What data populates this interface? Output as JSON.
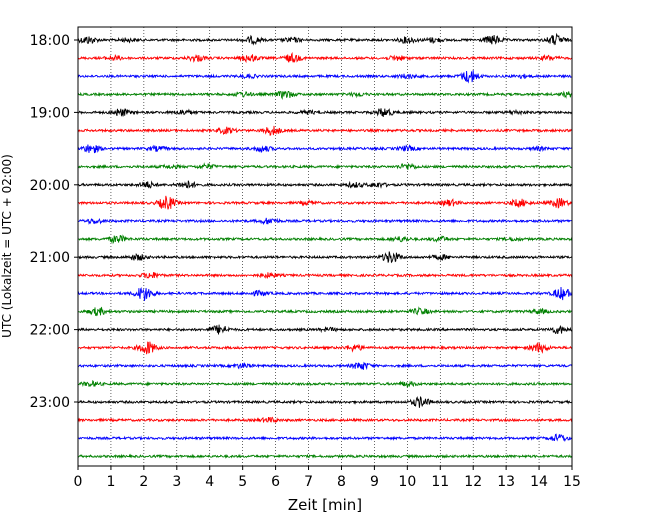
{
  "chart_data": {
    "type": "line",
    "title": "",
    "xlabel": "Zeit  [min]",
    "ylabel": "UTC (Lokalzeit = UTC + 02:00)",
    "xlim": [
      0,
      15
    ],
    "x_ticks": [
      "0",
      "1",
      "2",
      "3",
      "4",
      "5",
      "6",
      "7",
      "8",
      "9",
      "10",
      "11",
      "12",
      "13",
      "14",
      "15"
    ],
    "y_tick_labels": [
      "18:00",
      "19:00",
      "20:00",
      "21:00",
      "22:00",
      "23:00"
    ],
    "grid": "vertical dotted at each minute",
    "trace_colors": [
      "#000000",
      "#ff0000",
      "#0000ff",
      "#008000"
    ],
    "traces": [
      {
        "start": "18:00",
        "color": "#000000",
        "events": [
          [
            0.3,
            0.5
          ],
          [
            1.5,
            0.2
          ],
          [
            5.3,
            0.45
          ],
          [
            6.5,
            0.3
          ],
          [
            10.0,
            0.4
          ],
          [
            10.8,
            0.3
          ],
          [
            12.6,
            0.6
          ],
          [
            14.5,
            0.7
          ]
        ]
      },
      {
        "start": "18:15",
        "color": "#ff0000",
        "events": [
          [
            1.1,
            0.3
          ],
          [
            3.6,
            0.4
          ],
          [
            5.2,
            0.5
          ],
          [
            6.5,
            0.55
          ],
          [
            9.7,
            0.3
          ],
          [
            14.3,
            0.3
          ]
        ]
      },
      {
        "start": "18:30",
        "color": "#0000ff",
        "events": [
          [
            5.2,
            0.2
          ],
          [
            10.0,
            0.3
          ],
          [
            11.9,
            0.9
          ],
          [
            13.5,
            0.2
          ]
        ]
      },
      {
        "start": "18:45",
        "color": "#008000",
        "events": [
          [
            5.0,
            0.3
          ],
          [
            6.3,
            0.5
          ],
          [
            8.5,
            0.2
          ],
          [
            14.9,
            0.3
          ]
        ]
      },
      {
        "start": "19:00",
        "color": "#000000",
        "events": [
          [
            1.3,
            0.5
          ],
          [
            3.2,
            0.3
          ],
          [
            7.0,
            0.2
          ],
          [
            9.3,
            0.6
          ],
          [
            13.3,
            0.2
          ]
        ]
      },
      {
        "start": "19:15",
        "color": "#ff0000",
        "events": [
          [
            4.5,
            0.4
          ],
          [
            5.9,
            0.6
          ]
        ]
      },
      {
        "start": "19:30",
        "color": "#0000ff",
        "events": [
          [
            0.4,
            0.6
          ],
          [
            2.4,
            0.3
          ],
          [
            5.6,
            0.4
          ],
          [
            10.0,
            0.3
          ],
          [
            14.0,
            0.2
          ]
        ]
      },
      {
        "start": "19:45",
        "color": "#008000",
        "events": [
          [
            2.8,
            0.2
          ],
          [
            3.9,
            0.3
          ],
          [
            10.0,
            0.4
          ]
        ]
      },
      {
        "start": "20:00",
        "color": "#000000",
        "events": [
          [
            2.1,
            0.4
          ],
          [
            3.3,
            0.5
          ],
          [
            8.4,
            0.3
          ],
          [
            9.1,
            0.3
          ]
        ]
      },
      {
        "start": "20:15",
        "color": "#ff0000",
        "events": [
          [
            2.7,
            0.9
          ],
          [
            7.0,
            0.2
          ],
          [
            11.3,
            0.4
          ],
          [
            13.4,
            0.5
          ],
          [
            14.6,
            0.6
          ]
        ]
      },
      {
        "start": "20:30",
        "color": "#0000ff",
        "events": [
          [
            0.5,
            0.3
          ],
          [
            5.8,
            0.4
          ]
        ]
      },
      {
        "start": "20:45",
        "color": "#008000",
        "events": [
          [
            1.2,
            0.5
          ],
          [
            9.8,
            0.3
          ],
          [
            11.0,
            0.3
          ],
          [
            13.2,
            0.2
          ]
        ]
      },
      {
        "start": "21:00",
        "color": "#000000",
        "events": [
          [
            1.8,
            0.4
          ],
          [
            9.5,
            0.8
          ],
          [
            11.0,
            0.3
          ]
        ]
      },
      {
        "start": "21:15",
        "color": "#ff0000",
        "events": [
          [
            2.2,
            0.4
          ],
          [
            5.8,
            0.3
          ]
        ]
      },
      {
        "start": "21:30",
        "color": "#0000ff",
        "events": [
          [
            2.0,
            1.0
          ],
          [
            5.5,
            0.3
          ],
          [
            14.7,
            0.8
          ]
        ]
      },
      {
        "start": "21:45",
        "color": "#008000",
        "events": [
          [
            0.6,
            0.5
          ],
          [
            10.4,
            0.4
          ],
          [
            14.0,
            0.3
          ]
        ]
      },
      {
        "start": "22:00",
        "color": "#000000",
        "events": [
          [
            4.3,
            0.6
          ],
          [
            7.6,
            0.2
          ],
          [
            14.6,
            0.5
          ]
        ]
      },
      {
        "start": "22:15",
        "color": "#ff0000",
        "events": [
          [
            2.1,
            0.9
          ],
          [
            8.4,
            0.4
          ],
          [
            14.0,
            0.6
          ]
        ]
      },
      {
        "start": "22:30",
        "color": "#0000ff",
        "events": [
          [
            5.0,
            0.3
          ],
          [
            8.6,
            0.5
          ]
        ]
      },
      {
        "start": "22:45",
        "color": "#008000",
        "events": [
          [
            0.4,
            0.3
          ],
          [
            10.0,
            0.3
          ]
        ]
      },
      {
        "start": "23:00",
        "color": "#000000",
        "events": [
          [
            10.4,
            0.7
          ]
        ]
      },
      {
        "start": "23:15",
        "color": "#ff0000",
        "events": [
          [
            5.8,
            0.3
          ]
        ]
      },
      {
        "start": "23:30",
        "color": "#0000ff",
        "events": [
          [
            14.6,
            0.5
          ]
        ]
      },
      {
        "start": "23:45",
        "color": "#008000",
        "events": []
      }
    ]
  }
}
